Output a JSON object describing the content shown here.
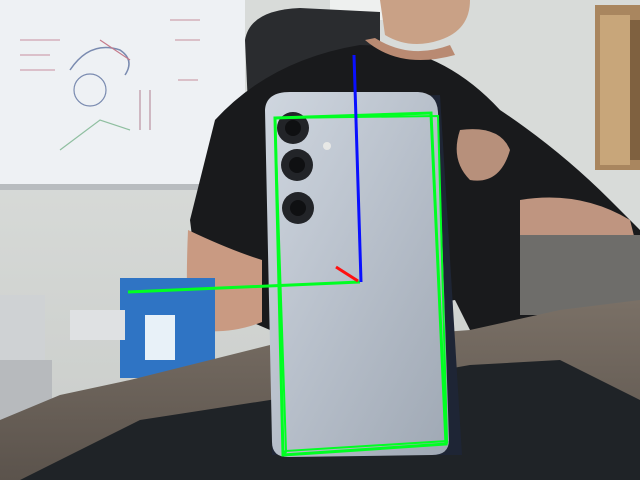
{
  "scene": {
    "description_hidden": "",
    "colors": {
      "wall": "#d9dcda",
      "whiteboard": "#eef1f4",
      "shelf": "#a9865f",
      "desk": "#6e655c",
      "mat": "#1f2327",
      "shirt": "#191a1c",
      "skin": "#c79a80",
      "phone_body": "#b9c1cb",
      "phone_edge": "#1e2535",
      "bbox": "#00ff22",
      "axis_x": "#00ff22",
      "axis_y": "#0a10ff",
      "axis_z": "#ff1010"
    },
    "overlay": {
      "bounding_box": "green-3d-box",
      "axes": [
        "x-axis-green",
        "y-axis-blue",
        "z-axis-red"
      ]
    }
  }
}
